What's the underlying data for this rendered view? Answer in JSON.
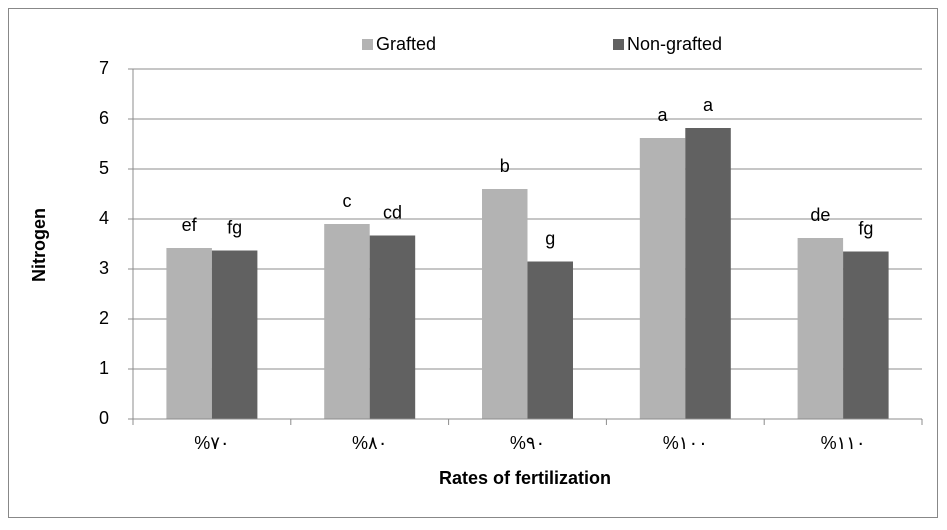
{
  "chart_data": {
    "type": "bar",
    "x_label": "Rates of fertilization",
    "y_label": "Nitrogen",
    "categories": [
      "%٧٠",
      "%٨٠",
      "%٩٠",
      "%١٠٠",
      "%١١٠"
    ],
    "series": [
      {
        "name": "Grafted",
        "color": "#b3b3b3",
        "values": [
          3.42,
          3.9,
          4.6,
          5.62,
          3.62
        ],
        "annotations": [
          "ef",
          "c",
          "b",
          "a",
          "de"
        ]
      },
      {
        "name": "Non-grafted",
        "color": "#616161",
        "values": [
          3.37,
          3.67,
          3.15,
          5.82,
          3.35
        ],
        "annotations": [
          "fg",
          "cd",
          "g",
          "a",
          "fg"
        ]
      }
    ],
    "ylim": [
      0,
      7
    ],
    "yticks": [
      0,
      1,
      2,
      3,
      4,
      5,
      6,
      7
    ],
    "grid": true,
    "legend": "top"
  }
}
